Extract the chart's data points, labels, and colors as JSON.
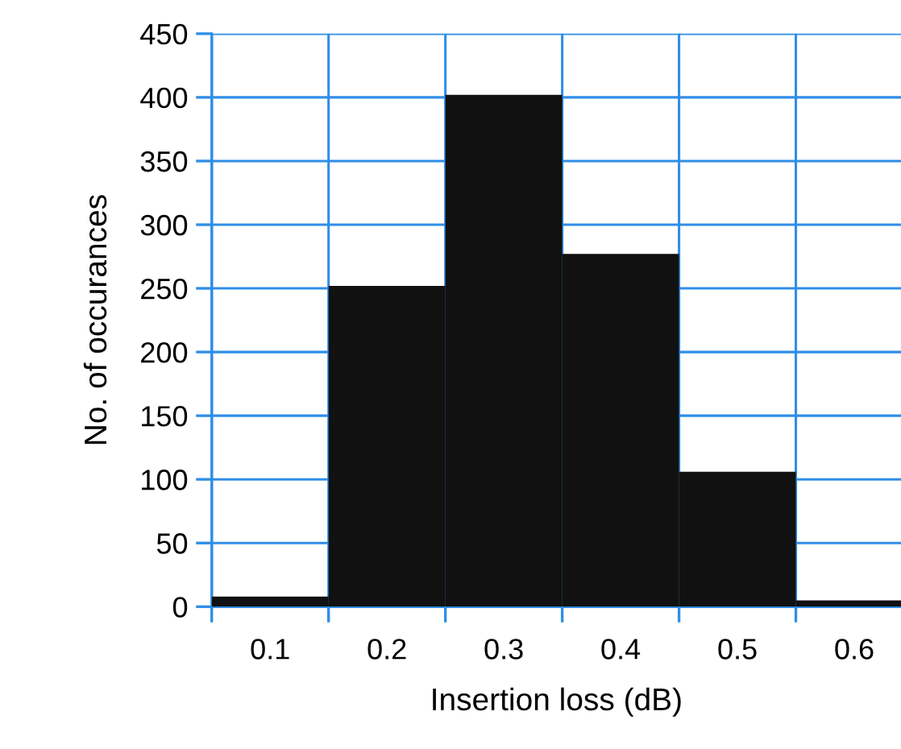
{
  "chart_data": {
    "type": "histogram",
    "xlabel": "Insertion loss (dB)",
    "ylabel": "No. of occurances",
    "bins": [
      0.05,
      0.15,
      0.25,
      0.35,
      0.45,
      0.55,
      0.65
    ],
    "values": [
      8,
      252,
      402,
      277,
      106,
      5
    ],
    "color": "#111111",
    "xlim": [
      0.05,
      0.64
    ],
    "ylim": [
      0,
      450
    ],
    "xticks": [
      {
        "value": 0.05,
        "label": null
      },
      {
        "value": 0.1,
        "label": "0.1"
      },
      {
        "value": 0.15,
        "label": null
      },
      {
        "value": 0.2,
        "label": "0.2"
      },
      {
        "value": 0.25,
        "label": null
      },
      {
        "value": 0.3,
        "label": "0.3"
      },
      {
        "value": 0.35,
        "label": null
      },
      {
        "value": 0.4,
        "label": "0.4"
      },
      {
        "value": 0.45,
        "label": null
      },
      {
        "value": 0.5,
        "label": "0.5"
      },
      {
        "value": 0.55,
        "label": null
      },
      {
        "value": 0.6,
        "label": "0.6"
      }
    ],
    "yticks": [
      0,
      50,
      100,
      150,
      200,
      250,
      300,
      350,
      400,
      450
    ],
    "grid": true
  }
}
